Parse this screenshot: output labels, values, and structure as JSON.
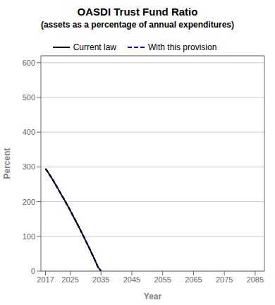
{
  "chart_data": {
    "type": "line",
    "title": "OASDI  Trust Fund Ratio",
    "subtitle": "(assets as a percentage of annual expenditures)",
    "xlabel": "Year",
    "ylabel": "Percent",
    "x": [
      2017,
      2018,
      2019,
      2020,
      2021,
      2022,
      2023,
      2024,
      2025,
      2026,
      2027,
      2028,
      2029,
      2030,
      2031,
      2032,
      2033,
      2034,
      2035
    ],
    "series": [
      {
        "name": "Current law",
        "color": "#000000",
        "line_style": "solid",
        "values": [
          295,
          282,
          268,
          253,
          238,
          222,
          207,
          191,
          175,
          158,
          141,
          124,
          106,
          88,
          70,
          51,
          32,
          12,
          0
        ]
      },
      {
        "name": "With this provision",
        "color": "#0000cc",
        "line_style": "dashed",
        "values": [
          295,
          282,
          268,
          253,
          238,
          222,
          207,
          191,
          175,
          158,
          141,
          124,
          106,
          88,
          70,
          51,
          32,
          12,
          0
        ]
      }
    ],
    "xlim": [
      2015.5,
      2088
    ],
    "ylim": [
      0,
      620
    ],
    "xticks": [
      2017,
      2025,
      2035,
      2045,
      2055,
      2065,
      2075,
      2085
    ],
    "yticks": [
      0,
      100,
      200,
      300,
      400,
      500,
      600
    ],
    "grid": true,
    "legend": "top"
  }
}
